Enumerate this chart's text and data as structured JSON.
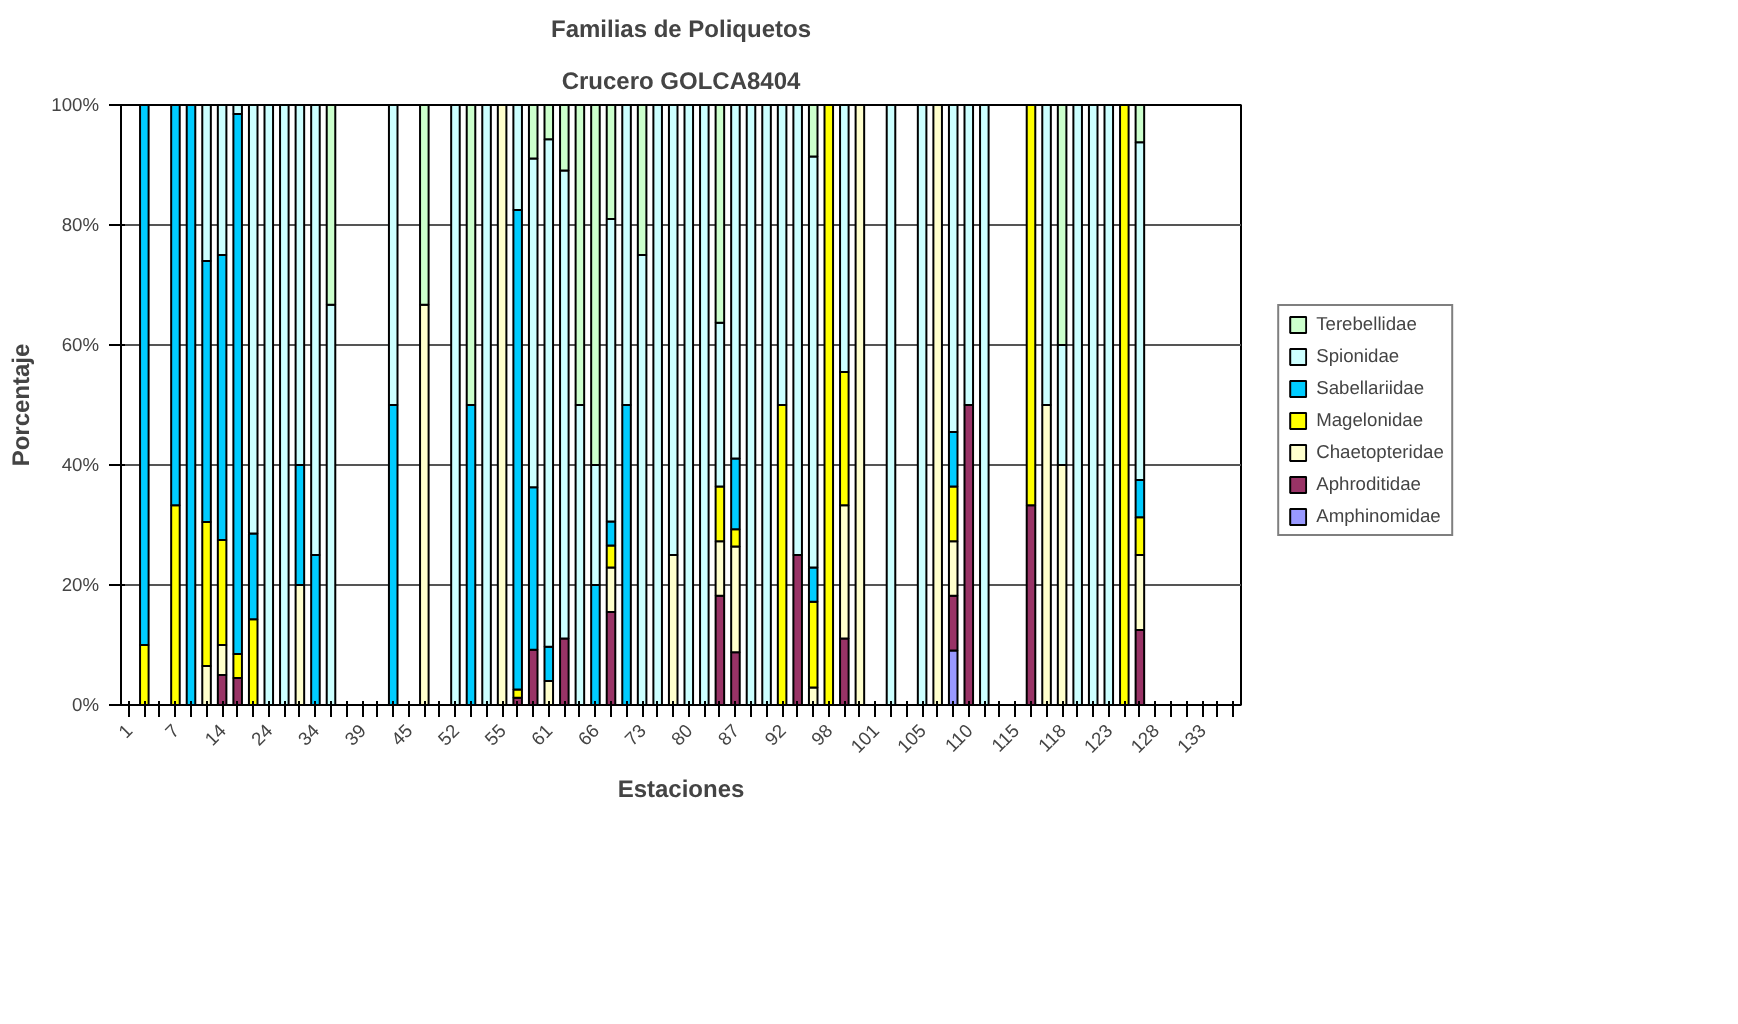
{
  "chart_data": {
    "type": "bar",
    "stacked": true,
    "title": "Familias de Poliquetos",
    "subtitle": "Crucero GOLCA8404",
    "xlabel": "Estaciones",
    "ylabel": "Porcentaje",
    "categories": [
      "1",
      null,
      null,
      "7",
      null,
      null,
      "14",
      null,
      null,
      "24",
      null,
      null,
      "34",
      null,
      null,
      "39",
      null,
      null,
      "45",
      null,
      null,
      "52",
      null,
      null,
      "55",
      null,
      null,
      "61",
      null,
      null,
      "66",
      null,
      null,
      "73",
      null,
      null,
      "80",
      null,
      null,
      "87",
      null,
      null,
      "92",
      null,
      null,
      "98",
      null,
      null,
      "101",
      null,
      null,
      "105",
      null,
      null,
      "110",
      null,
      null,
      "115",
      null,
      null,
      "118",
      null,
      null,
      "123",
      null,
      null,
      "128",
      null,
      null,
      "133",
      null,
      null
    ],
    "ylim": [
      0,
      100
    ],
    "yticks": [
      {
        "value": 0,
        "label": "0%"
      },
      {
        "value": 20,
        "label": "20%"
      },
      {
        "value": 40,
        "label": "40%"
      },
      {
        "value": 60,
        "label": "60%"
      },
      {
        "value": 80,
        "label": "80%"
      },
      {
        "value": 100,
        "label": "100%"
      }
    ],
    "grid": "y",
    "legend": "right",
    "series": [
      {
        "name": "Amphinomidae",
        "color": "#9999ff",
        "values": [
          null,
          null,
          null,
          null,
          null,
          null,
          null,
          null,
          null,
          null,
          null,
          null,
          null,
          null,
          null,
          null,
          null,
          null,
          null,
          null,
          null,
          null,
          null,
          null,
          null,
          null,
          null,
          null,
          null,
          null,
          null,
          null,
          null,
          null,
          null,
          null,
          null,
          null,
          null,
          null,
          null,
          null,
          null,
          null,
          null,
          null,
          null,
          null,
          null,
          null,
          null,
          null,
          null,
          9.1,
          null,
          null,
          null,
          null,
          null,
          null,
          null,
          null,
          null,
          null,
          null,
          null,
          null,
          null,
          null,
          null,
          null,
          null
        ]
      },
      {
        "name": "Aphroditidae",
        "color": "#993366",
        "values": [
          null,
          null,
          null,
          null,
          null,
          null,
          5,
          4.5,
          null,
          null,
          null,
          null,
          null,
          null,
          null,
          null,
          null,
          null,
          null,
          null,
          null,
          null,
          null,
          null,
          null,
          1.2,
          9.2,
          null,
          11.1,
          null,
          null,
          15.5,
          null,
          null,
          null,
          null,
          null,
          null,
          18.2,
          8.8,
          null,
          null,
          null,
          25,
          null,
          null,
          11.1,
          null,
          null,
          null,
          null,
          null,
          null,
          9.1,
          50,
          null,
          null,
          null,
          33.3,
          null,
          null,
          null,
          null,
          null,
          null,
          12.5,
          null,
          null,
          null,
          null,
          null,
          null
        ]
      },
      {
        "name": "Chaetopteridae",
        "color": "#ffffcc",
        "values": [
          null,
          null,
          null,
          null,
          null,
          6.5,
          5,
          null,
          null,
          null,
          null,
          20,
          null,
          null,
          null,
          null,
          null,
          null,
          null,
          66.7,
          null,
          null,
          null,
          null,
          100,
          null,
          null,
          4,
          null,
          null,
          null,
          7.4,
          null,
          null,
          null,
          25,
          null,
          null,
          9.1,
          17.6,
          null,
          null,
          null,
          null,
          2.9,
          null,
          22.2,
          100,
          null,
          null,
          null,
          null,
          100,
          9.1,
          null,
          null,
          null,
          null,
          null,
          50,
          40,
          null,
          null,
          null,
          null,
          12.5,
          null,
          null,
          null,
          null,
          null,
          null
        ]
      },
      {
        "name": "Magelonidae",
        "color": "#ffff00",
        "values": [
          null,
          10,
          null,
          33.3,
          null,
          24,
          17.5,
          4,
          14.3,
          null,
          null,
          null,
          null,
          null,
          null,
          null,
          null,
          null,
          null,
          null,
          null,
          null,
          null,
          null,
          null,
          1.4,
          null,
          null,
          null,
          null,
          null,
          3.7,
          null,
          null,
          null,
          null,
          null,
          null,
          9.1,
          2.9,
          null,
          null,
          50,
          null,
          14.3,
          100,
          22.2,
          null,
          null,
          null,
          null,
          null,
          null,
          9.1,
          null,
          null,
          null,
          null,
          66.7,
          null,
          null,
          null,
          null,
          null,
          100,
          6.3,
          null,
          null,
          null,
          null,
          null,
          null
        ]
      },
      {
        "name": "Sabellariidae",
        "color": "#00ccff",
        "values": [
          null,
          90,
          null,
          66.7,
          100,
          43.5,
          47.5,
          90,
          14.3,
          null,
          null,
          20,
          25,
          null,
          null,
          null,
          null,
          50,
          null,
          null,
          null,
          null,
          50,
          null,
          null,
          79.9,
          27.1,
          5.7,
          null,
          null,
          20,
          4,
          50,
          null,
          null,
          null,
          null,
          null,
          null,
          11.8,
          null,
          null,
          null,
          null,
          5.7,
          null,
          null,
          null,
          null,
          null,
          null,
          null,
          null,
          9.1,
          null,
          null,
          null,
          null,
          null,
          null,
          null,
          null,
          null,
          null,
          null,
          6.2,
          null,
          null,
          null,
          null,
          null,
          null
        ]
      },
      {
        "name": "Spionidae",
        "color": "#ccffff",
        "values": [
          null,
          null,
          null,
          null,
          null,
          26,
          25,
          1.5,
          71.4,
          100,
          100,
          60,
          75,
          66.7,
          null,
          null,
          null,
          50,
          null,
          null,
          null,
          100,
          null,
          100,
          null,
          17.5,
          54.8,
          84.6,
          78,
          50,
          20,
          50.4,
          50,
          75,
          100,
          75,
          100,
          100,
          27.3,
          58.9,
          100,
          100,
          50,
          75,
          68.5,
          null,
          44.5,
          null,
          null,
          100,
          null,
          100,
          null,
          54.5,
          50,
          100,
          null,
          null,
          null,
          50,
          20,
          100,
          100,
          100,
          null,
          56.3,
          null,
          null,
          null,
          null,
          null,
          null
        ]
      },
      {
        "name": "Terebellidae",
        "color": "#ccffcc",
        "values": [
          null,
          null,
          null,
          null,
          null,
          null,
          null,
          null,
          null,
          null,
          null,
          null,
          null,
          33.3,
          null,
          null,
          null,
          null,
          null,
          33.3,
          null,
          null,
          50,
          null,
          null,
          null,
          8.9,
          5.7,
          10.9,
          50,
          60,
          19,
          null,
          25,
          null,
          null,
          null,
          null,
          36.3,
          null,
          null,
          null,
          null,
          null,
          8.6,
          null,
          null,
          null,
          null,
          null,
          null,
          null,
          null,
          null,
          null,
          null,
          null,
          null,
          null,
          null,
          40,
          null,
          null,
          null,
          null,
          6.2,
          null,
          null,
          null,
          null,
          null,
          null
        ]
      }
    ]
  }
}
